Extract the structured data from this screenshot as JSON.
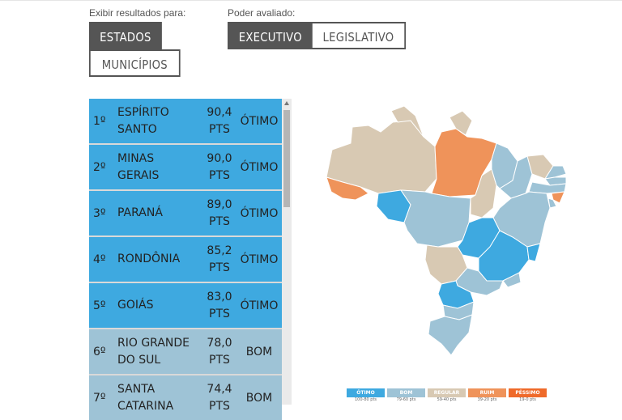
{
  "filters": {
    "results_label": "Exibir resultados para:",
    "power_label": "Poder avaliado:",
    "results_options": [
      "ESTADOS",
      "MUNICÍPIOS"
    ],
    "power_options": [
      "EXECUTIVO",
      "LEGISLATIVO"
    ],
    "results_selected": "ESTADOS",
    "power_selected": "EXECUTIVO"
  },
  "ranking": [
    {
      "pos": "1º",
      "name": "ESPÍRITO SANTO",
      "pts": "90,4 PTS",
      "class": "ÓTIMO",
      "color": "#3ea9e0"
    },
    {
      "pos": "2º",
      "name": "MINAS GERAIS",
      "pts": "90,0 PTS",
      "class": "ÓTIMO",
      "color": "#3ea9e0"
    },
    {
      "pos": "3º",
      "name": "PARANÁ",
      "pts": "89,0 PTS",
      "class": "ÓTIMO",
      "color": "#3ea9e0"
    },
    {
      "pos": "4º",
      "name": "RONDÔNIA",
      "pts": "85,2 PTS",
      "class": "ÓTIMO",
      "color": "#3ea9e0"
    },
    {
      "pos": "5º",
      "name": "GOIÁS",
      "pts": "83,0 PTS",
      "class": "ÓTIMO",
      "color": "#3ea9e0"
    },
    {
      "pos": "6º",
      "name": "RIO GRANDE DO SUL",
      "pts": "78,0 PTS",
      "class": "BOM",
      "color": "#9ec3d6"
    },
    {
      "pos": "7º",
      "name": "SANTA CATARINA",
      "pts": "74,4 PTS",
      "class": "BOM",
      "color": "#9ec3d6"
    }
  ],
  "legend": [
    {
      "label": "ÓTIMO",
      "range": "100-80 pts",
      "color": "#3ea9e0"
    },
    {
      "label": "BOM",
      "range": "79-60 pts",
      "color": "#9ec3d6"
    },
    {
      "label": "REGULAR",
      "range": "59-40 pts",
      "color": "#d8c9b3"
    },
    {
      "label": "RUIM",
      "range": "39-20 pts",
      "color": "#ef935a"
    },
    {
      "label": "PÉSSIMO",
      "range": "19-0 pts",
      "color": "#ef6a2a"
    }
  ],
  "colors": {
    "otimo": "#3ea9e0",
    "bom": "#9ec3d6",
    "regular": "#d8c9b3",
    "ruim": "#ef935a",
    "button_dark": "#555555"
  }
}
